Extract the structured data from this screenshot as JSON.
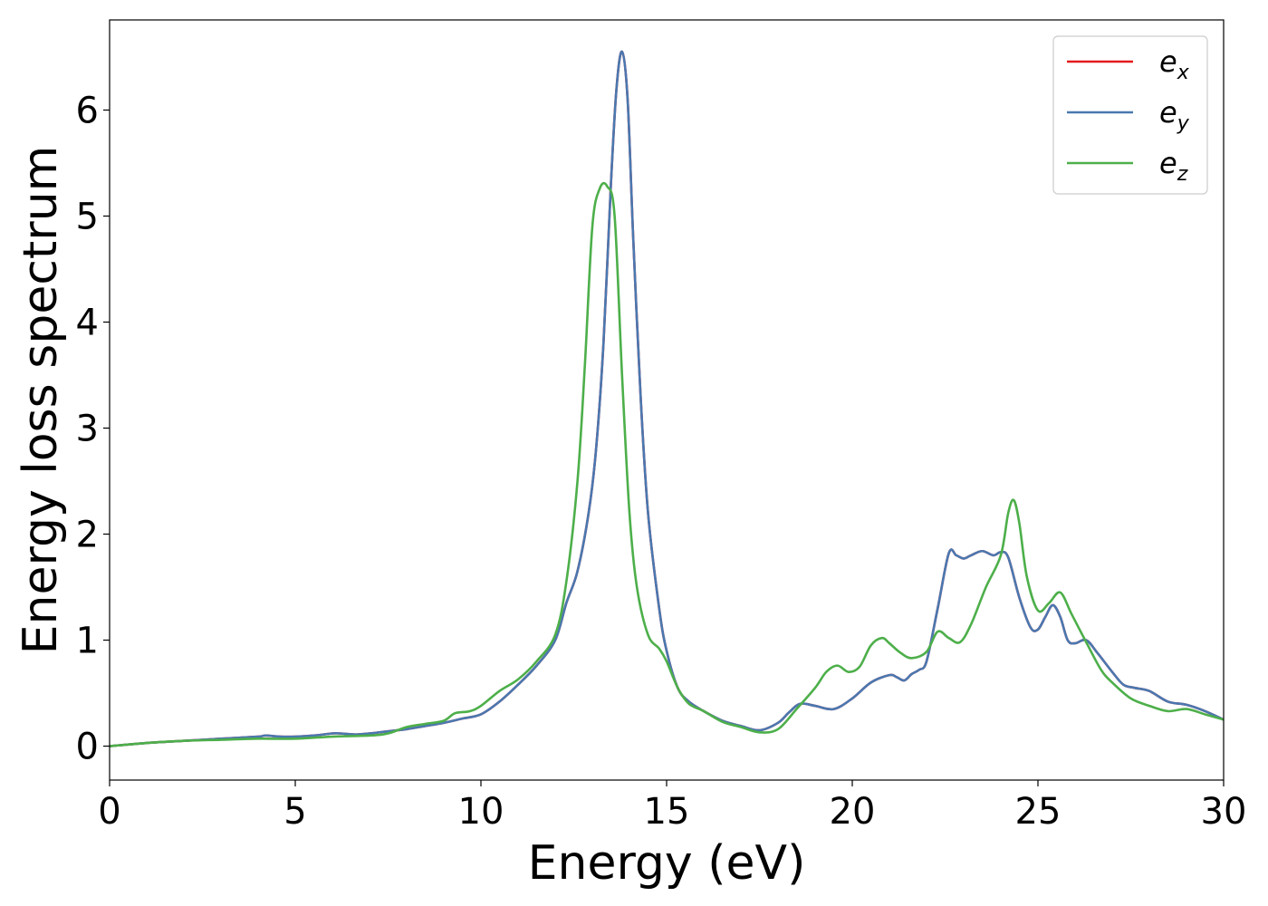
{
  "chart_data": {
    "type": "line",
    "xlabel": "Energy (eV)",
    "ylabel": "Energy loss spectrum",
    "xlim": [
      0,
      30
    ],
    "ylim": [
      -0.32,
      6.85
    ],
    "xticks": [
      0,
      5,
      10,
      15,
      20,
      25,
      30
    ],
    "yticks": [
      0,
      1,
      2,
      3,
      4,
      5,
      6
    ],
    "grid": false,
    "legend_position": "top-right",
    "series": [
      {
        "name": "x",
        "color": "#e41a1c",
        "x": [
          0,
          1,
          2,
          3,
          4,
          4.2,
          4.6,
          5,
          5.5,
          6,
          6.2,
          6.6,
          7,
          7.5,
          8,
          8.5,
          9,
          9.5,
          10,
          10.5,
          11,
          11.5,
          12,
          12.3,
          12.6,
          12.9,
          13.1,
          13.3,
          13.5,
          13.65,
          13.8,
          13.95,
          14.1,
          14.3,
          14.5,
          14.8,
          15,
          15.3,
          15.6,
          16,
          16.5,
          17,
          17.5,
          18,
          18.3,
          18.6,
          19,
          19.5,
          20,
          20.5,
          21,
          21.2,
          21.4,
          21.6,
          21.8,
          22,
          22.3,
          22.6,
          22.8,
          23,
          23.2,
          23.5,
          23.8,
          24,
          24.2,
          24.5,
          24.8,
          25,
          25.2,
          25.4,
          25.6,
          25.8,
          26,
          26.3,
          26.6,
          27,
          27.3,
          27.6,
          28,
          28.5,
          29,
          29.5,
          30
        ],
        "y": [
          0,
          0.03,
          0.05,
          0.07,
          0.09,
          0.1,
          0.09,
          0.09,
          0.1,
          0.12,
          0.12,
          0.11,
          0.12,
          0.14,
          0.16,
          0.19,
          0.22,
          0.26,
          0.3,
          0.42,
          0.58,
          0.76,
          1.0,
          1.35,
          1.65,
          2.2,
          2.8,
          3.8,
          5.3,
          6.2,
          6.55,
          6.1,
          4.8,
          3.3,
          2.2,
          1.3,
          0.9,
          0.55,
          0.42,
          0.33,
          0.24,
          0.19,
          0.15,
          0.22,
          0.32,
          0.4,
          0.38,
          0.35,
          0.45,
          0.6,
          0.67,
          0.65,
          0.62,
          0.68,
          0.72,
          0.8,
          1.3,
          1.82,
          1.8,
          1.77,
          1.8,
          1.84,
          1.8,
          1.83,
          1.78,
          1.4,
          1.12,
          1.1,
          1.22,
          1.33,
          1.22,
          1.0,
          0.97,
          1.0,
          0.88,
          0.7,
          0.58,
          0.55,
          0.52,
          0.42,
          0.39,
          0.33,
          0.25
        ]
      },
      {
        "name": "y",
        "color": "#4a78b0",
        "x": [
          0,
          1,
          2,
          3,
          4,
          4.2,
          4.6,
          5,
          5.5,
          6,
          6.2,
          6.6,
          7,
          7.5,
          8,
          8.5,
          9,
          9.5,
          10,
          10.5,
          11,
          11.5,
          12,
          12.3,
          12.6,
          12.9,
          13.1,
          13.3,
          13.5,
          13.65,
          13.8,
          13.95,
          14.1,
          14.3,
          14.5,
          14.8,
          15,
          15.3,
          15.6,
          16,
          16.5,
          17,
          17.5,
          18,
          18.3,
          18.6,
          19,
          19.5,
          20,
          20.5,
          21,
          21.2,
          21.4,
          21.6,
          21.8,
          22,
          22.3,
          22.6,
          22.8,
          23,
          23.2,
          23.5,
          23.8,
          24,
          24.2,
          24.5,
          24.8,
          25,
          25.2,
          25.4,
          25.6,
          25.8,
          26,
          26.3,
          26.6,
          27,
          27.3,
          27.6,
          28,
          28.5,
          29,
          29.5,
          30
        ],
        "y": [
          0,
          0.03,
          0.05,
          0.07,
          0.09,
          0.1,
          0.09,
          0.09,
          0.1,
          0.12,
          0.12,
          0.11,
          0.12,
          0.14,
          0.16,
          0.19,
          0.22,
          0.26,
          0.3,
          0.42,
          0.58,
          0.76,
          1.0,
          1.35,
          1.65,
          2.2,
          2.8,
          3.8,
          5.3,
          6.2,
          6.55,
          6.1,
          4.8,
          3.3,
          2.2,
          1.3,
          0.9,
          0.55,
          0.42,
          0.33,
          0.24,
          0.19,
          0.15,
          0.22,
          0.32,
          0.4,
          0.38,
          0.35,
          0.45,
          0.6,
          0.67,
          0.65,
          0.62,
          0.68,
          0.72,
          0.8,
          1.3,
          1.82,
          1.8,
          1.77,
          1.8,
          1.84,
          1.8,
          1.83,
          1.78,
          1.4,
          1.12,
          1.1,
          1.22,
          1.33,
          1.22,
          1.0,
          0.97,
          1.0,
          0.88,
          0.7,
          0.58,
          0.55,
          0.52,
          0.42,
          0.39,
          0.33,
          0.25
        ]
      },
      {
        "name": "z",
        "color": "#4daf4a",
        "x": [
          0,
          1,
          2,
          3,
          4,
          5,
          6,
          7,
          7.5,
          8,
          8.5,
          9,
          9.3,
          9.7,
          10,
          10.5,
          11,
          11.5,
          12,
          12.3,
          12.6,
          12.8,
          13,
          13.2,
          13.4,
          13.6,
          13.8,
          14,
          14.2,
          14.5,
          14.8,
          15,
          15.3,
          15.6,
          16,
          16.5,
          17,
          17.5,
          18,
          18.5,
          19,
          19.3,
          19.6,
          19.9,
          20.2,
          20.5,
          20.8,
          21,
          21.3,
          21.6,
          22,
          22.3,
          22.6,
          22.9,
          23.2,
          23.6,
          24,
          24.2,
          24.35,
          24.5,
          24.7,
          25,
          25.3,
          25.6,
          25.9,
          26.3,
          26.7,
          27,
          27.5,
          28,
          28.5,
          29,
          29.5,
          30
        ],
        "y": [
          0,
          0.03,
          0.05,
          0.06,
          0.07,
          0.07,
          0.09,
          0.1,
          0.12,
          0.18,
          0.21,
          0.24,
          0.31,
          0.33,
          0.38,
          0.52,
          0.63,
          0.8,
          1.05,
          1.55,
          2.5,
          3.6,
          4.9,
          5.26,
          5.28,
          5.0,
          3.5,
          2.2,
          1.5,
          1.05,
          0.92,
          0.8,
          0.55,
          0.4,
          0.33,
          0.23,
          0.18,
          0.13,
          0.16,
          0.35,
          0.55,
          0.7,
          0.76,
          0.7,
          0.75,
          0.95,
          1.02,
          0.97,
          0.88,
          0.83,
          0.89,
          1.08,
          1.02,
          0.98,
          1.15,
          1.5,
          1.8,
          2.2,
          2.32,
          2.1,
          1.6,
          1.28,
          1.35,
          1.45,
          1.25,
          0.98,
          0.72,
          0.6,
          0.45,
          0.38,
          0.33,
          0.35,
          0.3,
          0.25
        ]
      }
    ]
  }
}
